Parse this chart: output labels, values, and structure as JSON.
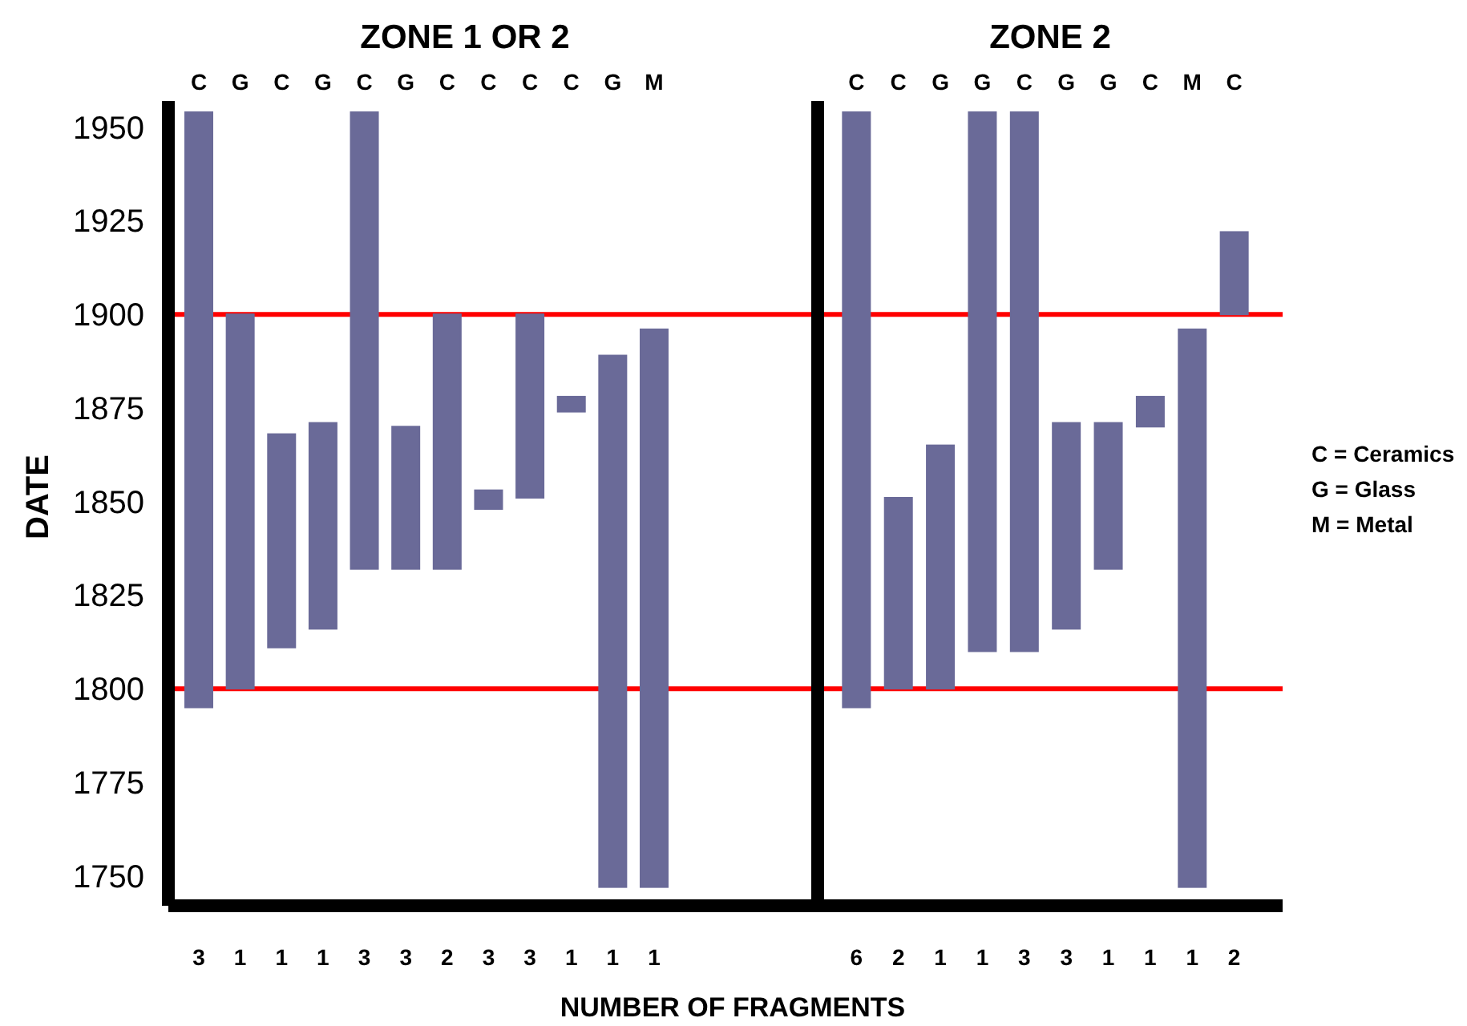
{
  "chart_data": [
    {
      "type": "bar",
      "title": "ZONE 1 OR 2",
      "xlabel": "NUMBER OF FRAGMENTS",
      "ylabel": "DATE",
      "categories": [
        "3",
        "1",
        "1",
        "1",
        "3",
        "3",
        "2",
        "3",
        "3",
        "1",
        "1",
        "1"
      ],
      "base": [
        1795,
        1800,
        1811,
        1816,
        1832,
        1832,
        1832,
        1848,
        1851,
        1874,
        1747,
        1747
      ],
      "values": [
        159,
        100,
        57,
        55,
        122,
        38,
        68,
        5,
        49,
        4,
        142,
        149
      ],
      "annotations": [
        "C",
        "G",
        "C",
        "G",
        "C",
        "G",
        "C",
        "C",
        "C",
        "C",
        "G",
        "M"
      ],
      "color": "#6a6a98",
      "ylim": [
        1742,
        1957
      ],
      "yticks": [
        1750,
        1775,
        1800,
        1825,
        1850,
        1875,
        1900,
        1925,
        1950
      ],
      "ref_lines": [
        {
          "axis": "y",
          "value": 1800,
          "color": "#ff0000"
        },
        {
          "axis": "y",
          "value": 1900,
          "color": "#ff0000"
        }
      ]
    },
    {
      "type": "bar",
      "title": "ZONE 2",
      "categories": [
        "6",
        "2",
        "1",
        "1",
        "3",
        "3",
        "1",
        "1",
        "1",
        "2"
      ],
      "base": [
        1795,
        1800,
        1800,
        1810,
        1810,
        1816,
        1832,
        1870,
        1747,
        1900
      ],
      "values": [
        159,
        51,
        65,
        144,
        144,
        55,
        39,
        8,
        149,
        22
      ],
      "color": "#6a6a98",
      "ylim": [
        1742,
        1957
      ],
      "yticks": [
        1750,
        1775,
        1800,
        1825,
        1850,
        1875,
        1900,
        1925,
        1950
      ],
      "tick_labels": "x",
      "ref_lines": [
        {
          "axis": "y",
          "value": 1800,
          "color": "#ff0000"
        },
        {
          "axis": "y",
          "value": 1900,
          "color": "#ff0000"
        }
      ],
      "annotations": [
        "C",
        "C",
        "G",
        "G",
        "C",
        "G",
        "G",
        "C",
        "M",
        "C",
        "C = Ceramics",
        "G = Glass",
        "M = Metal"
      ]
    }
  ]
}
